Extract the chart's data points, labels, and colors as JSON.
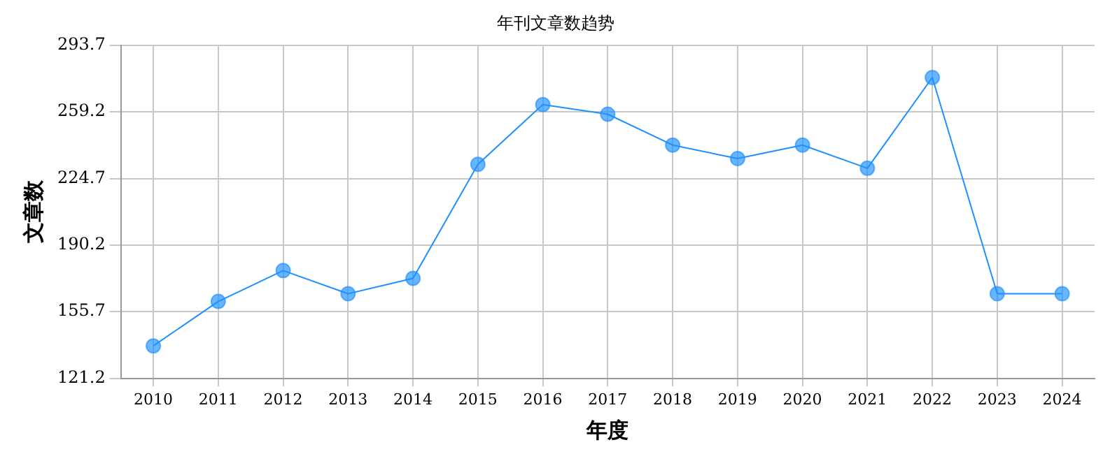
{
  "chart_data": {
    "type": "line",
    "title": "年刊文章数趋势",
    "xlabel": "年度",
    "ylabel": "文章数",
    "categories": [
      "2010",
      "2011",
      "2012",
      "2013",
      "2014",
      "2015",
      "2016",
      "2017",
      "2018",
      "2019",
      "2020",
      "2021",
      "2022",
      "2023",
      "2024"
    ],
    "series": [
      {
        "color": "#1e90ff",
        "values": [
          138,
          161,
          177,
          165,
          173,
          232,
          263,
          258,
          242,
          235,
          242,
          230,
          277,
          165,
          165
        ]
      }
    ],
    "ylim": [
      121.2,
      293.7
    ],
    "yticks": [
      121.2,
      155.7,
      190.2,
      224.7,
      259.2,
      293.7
    ],
    "grid": true,
    "legend": false,
    "marker": "circle",
    "line_style": "solid"
  }
}
